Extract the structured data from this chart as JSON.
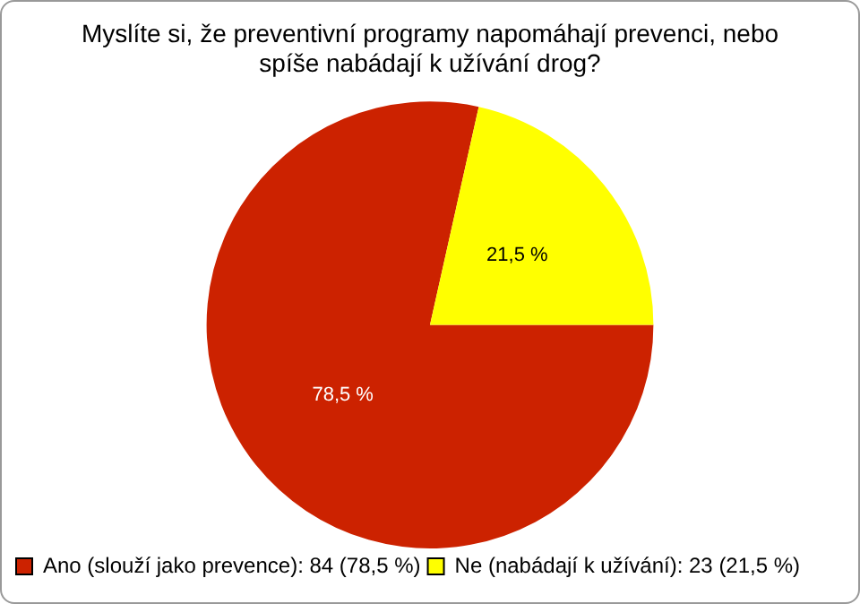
{
  "chart_data": {
    "type": "pie",
    "title": "Myslíte si, že preventivní programy napomáhají prevenci, nebo spíše nabádají k užívání drog?",
    "categories": [
      "Ano (slouží jako prevence): 84 (78,5 %)",
      "Ne (nabádají k užívání): 23 (21,5 %)"
    ],
    "values": [
      78.5,
      21.5
    ],
    "colors": [
      "#cc2200",
      "#ffff00"
    ],
    "value_labels": [
      "78,5 %",
      "21,5 %"
    ],
    "legend": "bottom"
  }
}
